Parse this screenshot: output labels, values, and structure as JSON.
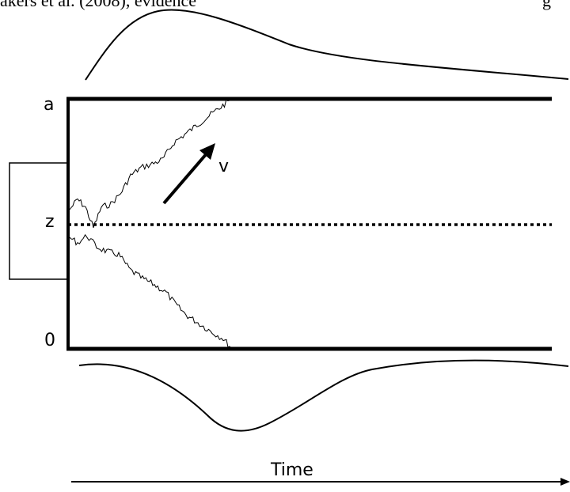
{
  "header_fragment": "akers et al. (2008), evidence",
  "header_fragment_right": "g",
  "labels": {
    "upper_boundary": "a",
    "starting_point": "z",
    "lower_boundary": "0",
    "drift_rate": "v",
    "time_axis": "Time"
  },
  "colors": {
    "ink": "#000000",
    "background": "#ffffff"
  }
}
